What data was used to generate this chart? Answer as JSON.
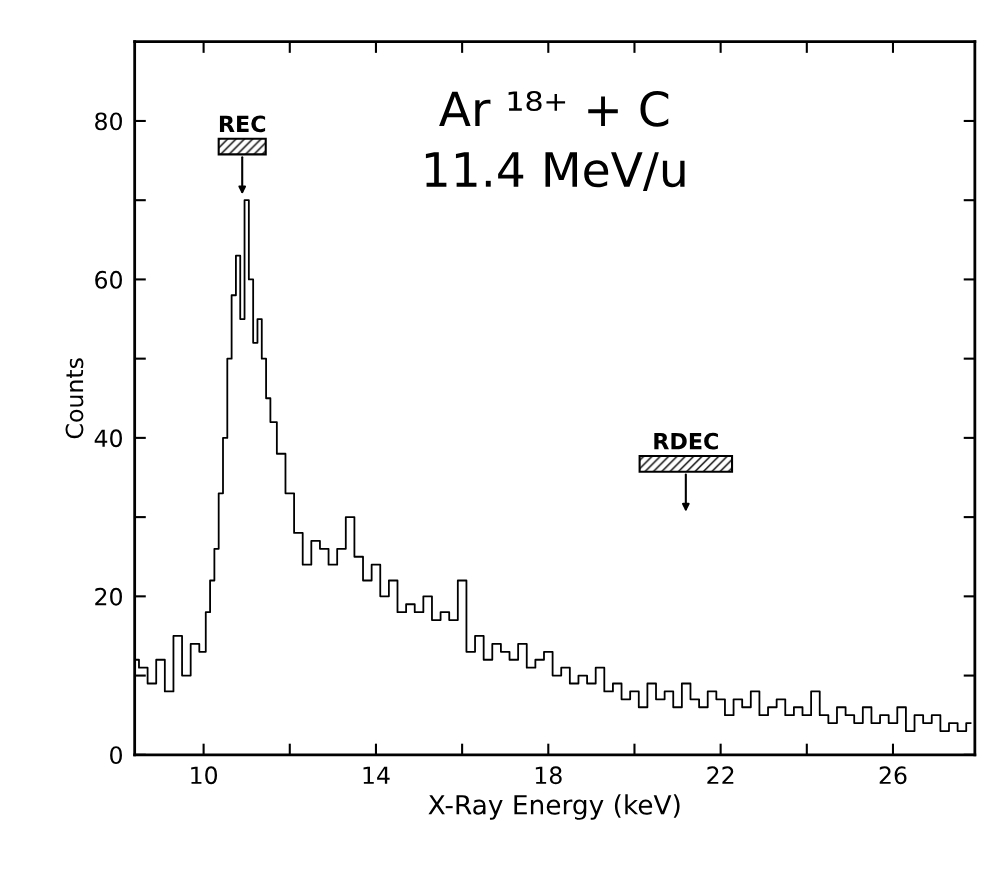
{
  "chart_data": {
    "type": "step",
    "xlabel": "X-Ray Energy (keV)",
    "ylabel": "Counts",
    "xlim": [
      8.4,
      27.9
    ],
    "ylim": [
      0,
      90
    ],
    "xticks": [
      10,
      {
        "value": 12,
        "label": null
      },
      14,
      {
        "value": 16,
        "label": null
      },
      18,
      {
        "value": 20,
        "label": null
      },
      22,
      {
        "value": 24,
        "label": null
      },
      26
    ],
    "yticks": [
      0,
      {
        "value": 10,
        "label": null
      },
      20,
      {
        "value": 30,
        "label": null
      },
      40,
      {
        "value": 50,
        "label": null
      },
      60,
      {
        "value": 70,
        "label": null
      },
      80
    ],
    "grid": false,
    "legend": false,
    "annotations": [
      "REC",
      "RDEC",
      "Ar ¹⁸⁺ + C",
      "11.4 MeV/u"
    ],
    "x": [
      8.4,
      8.6,
      8.8,
      9.0,
      9.2,
      9.4,
      9.6,
      9.8,
      10.0,
      10.1,
      10.2,
      10.3,
      10.4,
      10.5,
      10.6,
      10.7,
      10.8,
      10.9,
      11.0,
      11.1,
      11.2,
      11.3,
      11.4,
      11.5,
      11.6,
      11.8,
      12.0,
      12.2,
      12.4,
      12.6,
      12.8,
      13.0,
      13.2,
      13.4,
      13.6,
      13.8,
      14.0,
      14.2,
      14.4,
      14.6,
      14.8,
      15.0,
      15.2,
      15.4,
      15.6,
      15.8,
      16.0,
      16.2,
      16.4,
      16.6,
      16.8,
      17.0,
      17.2,
      17.4,
      17.6,
      17.8,
      18.0,
      18.2,
      18.4,
      18.6,
      18.8,
      19.0,
      19.2,
      19.4,
      19.6,
      19.8,
      20.0,
      20.2,
      20.4,
      20.6,
      20.8,
      21.0,
      21.2,
      21.4,
      21.6,
      21.8,
      22.0,
      22.2,
      22.4,
      22.6,
      22.8,
      23.0,
      23.2,
      23.4,
      23.6,
      23.8,
      24.0,
      24.2,
      24.4,
      24.6,
      24.8,
      25.0,
      25.2,
      25.4,
      25.6,
      25.8,
      26.0,
      26.2,
      26.4,
      26.6,
      26.8,
      27.0,
      27.2,
      27.4,
      27.6,
      27.8
    ],
    "series": [
      {
        "color": "#000000",
        "values": [
          12,
          11,
          9,
          12,
          8,
          15,
          10,
          14,
          13,
          18,
          22,
          26,
          33,
          40,
          50,
          58,
          63,
          55,
          70,
          60,
          52,
          55,
          50,
          45,
          42,
          38,
          33,
          28,
          24,
          27,
          26,
          24,
          26,
          30,
          25,
          22,
          24,
          20,
          22,
          18,
          19,
          18,
          20,
          17,
          18,
          17,
          22,
          13,
          15,
          12,
          14,
          13,
          12,
          14,
          11,
          12,
          13,
          10,
          11,
          9,
          10,
          9,
          11,
          8,
          9,
          7,
          8,
          6,
          9,
          7,
          8,
          6,
          9,
          7,
          6,
          8,
          7,
          5,
          7,
          6,
          8,
          5,
          6,
          7,
          5,
          6,
          5,
          8,
          5,
          4,
          6,
          5,
          4,
          6,
          4,
          5,
          4,
          6,
          3,
          5,
          4,
          5,
          3,
          4,
          3,
          4
        ]
      }
    ]
  }
}
